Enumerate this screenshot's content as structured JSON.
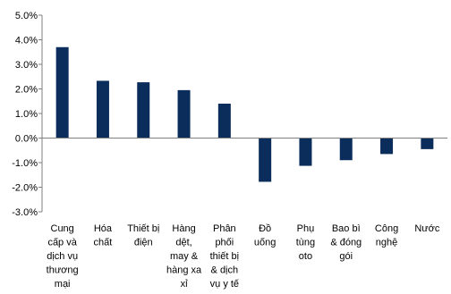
{
  "chart_data": {
    "type": "bar",
    "categories": [
      [
        "Cung",
        "cấp và",
        "dịch vụ",
        "thương",
        "mại"
      ],
      [
        "Hóa",
        "chất"
      ],
      [
        "Thiết bị",
        "điện"
      ],
      [
        "Hàng",
        "dệt,",
        "may &",
        "hàng xa",
        "xỉ"
      ],
      [
        "Phân",
        "phối",
        "thiết bị",
        "& dịch",
        "vụ y tế"
      ],
      [
        "Đồ",
        "uống"
      ],
      [
        "Phụ",
        "tùng",
        "oto"
      ],
      [
        "Bao bì",
        "& đóng",
        "gói"
      ],
      [
        "Công",
        "nghệ"
      ],
      [
        "Nước"
      ]
    ],
    "values": [
      3.7,
      2.33,
      2.27,
      1.95,
      1.4,
      -1.78,
      -1.13,
      -0.9,
      -0.65,
      -0.45
    ],
    "ylim": [
      -3.0,
      5.0
    ],
    "yticks": [
      5.0,
      4.0,
      3.0,
      2.0,
      1.0,
      0.0,
      -1.0,
      -2.0,
      -3.0
    ],
    "ytick_labels": [
      "5.0%",
      "4.0%",
      "3.0%",
      "2.0%",
      "1.0%",
      "0.0%",
      "-1.0%",
      "-2.0%",
      "-3.0%"
    ],
    "grid": false,
    "bar_color": "#0b2d5b",
    "axis_color": "#7f7f7f"
  }
}
